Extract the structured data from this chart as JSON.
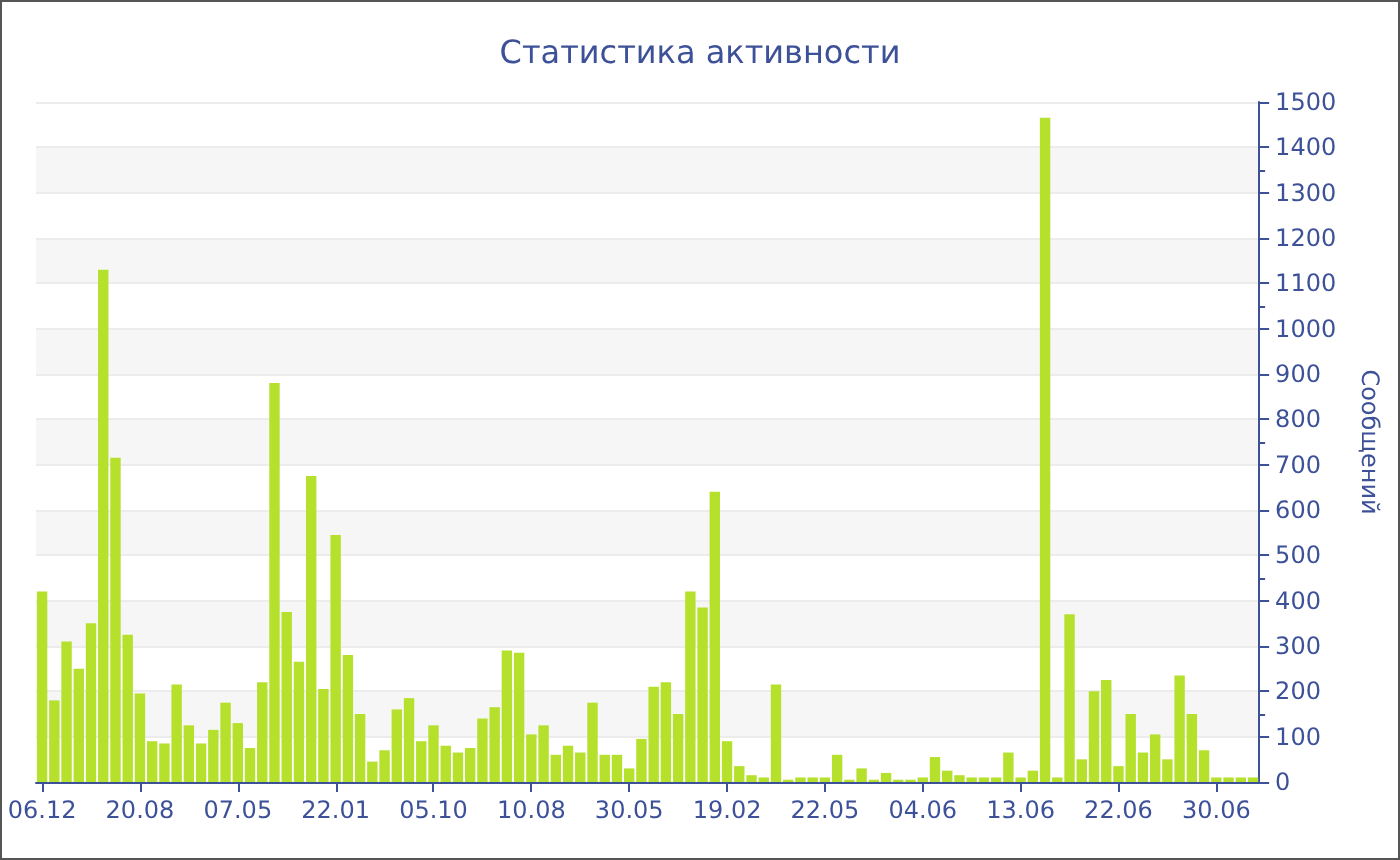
{
  "chart_data": {
    "type": "bar",
    "title": "Статистика активности",
    "ylabel": "Сообщений",
    "categories": [
      "06.12",
      null,
      null,
      null,
      null,
      null,
      null,
      null,
      "20.08",
      null,
      null,
      null,
      null,
      null,
      null,
      null,
      "07.05",
      null,
      null,
      null,
      null,
      null,
      null,
      null,
      "22.01",
      null,
      null,
      null,
      null,
      null,
      null,
      null,
      "05.10",
      null,
      null,
      null,
      null,
      null,
      null,
      null,
      "10.08",
      null,
      null,
      null,
      null,
      null,
      null,
      null,
      "30.05",
      null,
      null,
      null,
      null,
      null,
      null,
      null,
      "19.02",
      null,
      null,
      null,
      null,
      null,
      null,
      null,
      "22.05",
      null,
      null,
      null,
      null,
      null,
      null,
      null,
      "04.06",
      null,
      null,
      null,
      null,
      null,
      null,
      null,
      "13.06",
      null,
      null,
      null,
      null,
      null,
      null,
      null,
      "22.06",
      null,
      null,
      null,
      null,
      null,
      null,
      null,
      "30.06",
      null,
      null,
      null
    ],
    "values": [
      420,
      180,
      310,
      250,
      350,
      1130,
      715,
      325,
      195,
      90,
      85,
      215,
      125,
      85,
      115,
      175,
      130,
      75,
      220,
      880,
      375,
      265,
      675,
      205,
      545,
      280,
      150,
      45,
      70,
      160,
      185,
      90,
      125,
      80,
      65,
      75,
      140,
      165,
      290,
      285,
      105,
      125,
      60,
      80,
      65,
      175,
      60,
      60,
      30,
      95,
      210,
      220,
      150,
      420,
      385,
      640,
      90,
      35,
      15,
      10,
      215,
      5,
      10,
      10,
      10,
      60,
      5,
      30,
      5,
      20,
      5,
      5,
      10,
      55,
      25,
      15,
      10,
      10,
      10,
      65,
      10,
      25,
      1465,
      10,
      370,
      50,
      200,
      225,
      35,
      150,
      65,
      105,
      50,
      235,
      150,
      70,
      10,
      10,
      10,
      10
    ],
    "color": "#b5e02c",
    "ylim": [
      0,
      1500
    ],
    "yticks": [
      0,
      100,
      200,
      300,
      400,
      500,
      600,
      700,
      800,
      900,
      1000,
      1100,
      1200,
      1300,
      1400,
      1500
    ],
    "grid": "y"
  }
}
